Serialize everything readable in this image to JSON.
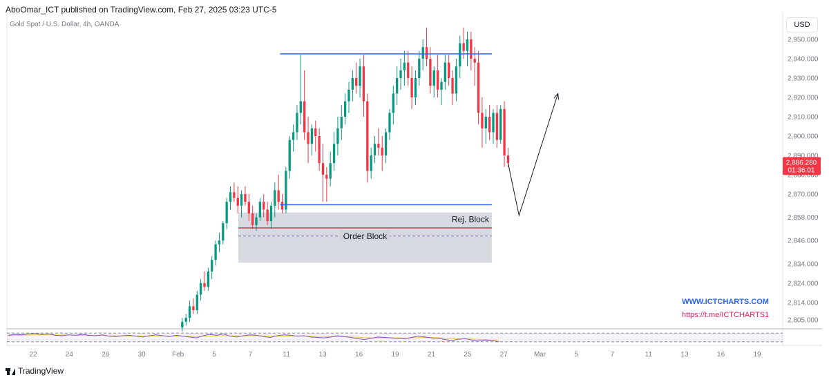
{
  "header": {
    "publisher_line": "AboOmar_ICT published on TradingView.com, Feb 27, 2025 03:23 UTC-5",
    "symbol_line": "Gold Spot / U.S. Dollar, 4h, OANDA"
  },
  "currency_button": "USD",
  "footer": {
    "brand": "TradingView"
  },
  "colors": {
    "up": "#089981",
    "down": "#f23645",
    "level_line": "#2962ff",
    "ob_line": "#b22833",
    "zone": "#d1d4dc",
    "rsi_line": "#7e57c2",
    "rsi_ma": "#f5c542",
    "promo_web": "#2962ff",
    "promo_tg": "#e91e63"
  },
  "chart_data": {
    "type": "candlestick",
    "ylim": [
      2800,
      2963
    ],
    "y_ticks": [
      2805,
      2814,
      2824,
      2834,
      2846,
      2858,
      2870,
      2880,
      2890,
      2900,
      2910,
      2920,
      2930,
      2940,
      2950
    ],
    "y_tick_labels": [
      "2,805.000",
      "2,814.000",
      "2,824.000",
      "2,834.000",
      "2,846.000",
      "2,858.000",
      "2,870.000",
      "2,880.000",
      "2,890.000",
      "2,900.000",
      "2,910.000",
      "2,920.000",
      "2,930.000",
      "2,940.000",
      "2,950.000"
    ],
    "x_labels": [
      "22",
      "24",
      "28",
      "30",
      "Feb",
      "5",
      "7",
      "11",
      "13",
      "16",
      "19",
      "21",
      "25",
      "27",
      "Mar",
      "5",
      "7",
      "11",
      "13",
      "16",
      "19"
    ],
    "x_label_pos": [
      0,
      2,
      4,
      6,
      8,
      10,
      12,
      14,
      16,
      18,
      20,
      22,
      24,
      26,
      28,
      30,
      32,
      34,
      36,
      38,
      40
    ],
    "last_price": {
      "label": "2,886.280",
      "countdown": "01:36:01",
      "value": 2886.28
    },
    "candle_slots": {
      "first_slot": 8.2,
      "last_slot": 26.2
    },
    "candles": [
      [
        2801,
        2806,
        2799,
        2804
      ],
      [
        2804,
        2808,
        2802,
        2806
      ],
      [
        2806,
        2815,
        2804,
        2812
      ],
      [
        2812,
        2816,
        2808,
        2810
      ],
      [
        2810,
        2820,
        2808,
        2818
      ],
      [
        2818,
        2826,
        2815,
        2824
      ],
      [
        2824,
        2830,
        2820,
        2822
      ],
      [
        2822,
        2832,
        2820,
        2830
      ],
      [
        2830,
        2838,
        2826,
        2836
      ],
      [
        2836,
        2846,
        2833,
        2844
      ],
      [
        2844,
        2850,
        2840,
        2846
      ],
      [
        2846,
        2856,
        2844,
        2855
      ],
      [
        2855,
        2868,
        2852,
        2866
      ],
      [
        2866,
        2874,
        2862,
        2871
      ],
      [
        2871,
        2876,
        2866,
        2868
      ],
      [
        2868,
        2874,
        2860,
        2864
      ],
      [
        2864,
        2872,
        2858,
        2870
      ],
      [
        2870,
        2874,
        2864,
        2866
      ],
      [
        2866,
        2870,
        2856,
        2860
      ],
      [
        2860,
        2864,
        2852,
        2854
      ],
      [
        2854,
        2860,
        2851,
        2858
      ],
      [
        2858,
        2868,
        2856,
        2866
      ],
      [
        2866,
        2870,
        2858,
        2862
      ],
      [
        2862,
        2866,
        2854,
        2856
      ],
      [
        2856,
        2866,
        2852,
        2864
      ],
      [
        2864,
        2876,
        2858,
        2872
      ],
      [
        2872,
        2880,
        2862,
        2866
      ],
      [
        2866,
        2870,
        2860,
        2862
      ],
      [
        2862,
        2884,
        2860,
        2882
      ],
      [
        2882,
        2900,
        2878,
        2898
      ],
      [
        2898,
        2906,
        2892,
        2902
      ],
      [
        2902,
        2916,
        2898,
        2912
      ],
      [
        2912,
        2942,
        2906,
        2918
      ],
      [
        2918,
        2934,
        2898,
        2902
      ],
      [
        2902,
        2910,
        2886,
        2896
      ],
      [
        2896,
        2906,
        2890,
        2904
      ],
      [
        2904,
        2908,
        2892,
        2900
      ],
      [
        2900,
        2904,
        2882,
        2886
      ],
      [
        2886,
        2896,
        2866,
        2880
      ],
      [
        2880,
        2884,
        2866,
        2878
      ],
      [
        2878,
        2892,
        2874,
        2886
      ],
      [
        2886,
        2902,
        2882,
        2896
      ],
      [
        2896,
        2910,
        2890,
        2904
      ],
      [
        2904,
        2916,
        2898,
        2910
      ],
      [
        2910,
        2922,
        2906,
        2918
      ],
      [
        2918,
        2928,
        2912,
        2924
      ],
      [
        2924,
        2934,
        2918,
        2930
      ],
      [
        2930,
        2938,
        2922,
        2926
      ],
      [
        2926,
        2940,
        2920,
        2936
      ],
      [
        2936,
        2942,
        2910,
        2918
      ],
      [
        2918,
        2922,
        2876,
        2882
      ],
      [
        2882,
        2894,
        2878,
        2890
      ],
      [
        2890,
        2900,
        2886,
        2896
      ],
      [
        2896,
        2904,
        2890,
        2894
      ],
      [
        2894,
        2900,
        2882,
        2890
      ],
      [
        2890,
        2904,
        2886,
        2902
      ],
      [
        2902,
        2914,
        2898,
        2912
      ],
      [
        2912,
        2926,
        2906,
        2922
      ],
      [
        2922,
        2936,
        2916,
        2930
      ],
      [
        2930,
        2940,
        2924,
        2934
      ],
      [
        2934,
        2944,
        2926,
        2938
      ],
      [
        2938,
        2944,
        2926,
        2930
      ],
      [
        2930,
        2936,
        2914,
        2920
      ],
      [
        2920,
        2934,
        2916,
        2930
      ],
      [
        2930,
        2944,
        2926,
        2940
      ],
      [
        2940,
        2950,
        2934,
        2946
      ],
      [
        2946,
        2956,
        2936,
        2940
      ],
      [
        2940,
        2946,
        2922,
        2926
      ],
      [
        2926,
        2936,
        2920,
        2934
      ],
      [
        2934,
        2942,
        2920,
        2924
      ],
      [
        2924,
        2930,
        2916,
        2928
      ],
      [
        2928,
        2942,
        2924,
        2938
      ],
      [
        2938,
        2942,
        2926,
        2930
      ],
      [
        2930,
        2934,
        2916,
        2922
      ],
      [
        2922,
        2940,
        2918,
        2936
      ],
      [
        2936,
        2952,
        2930,
        2948
      ],
      [
        2948,
        2956,
        2940,
        2944
      ],
      [
        2944,
        2954,
        2936,
        2950
      ],
      [
        2950,
        2954,
        2934,
        2940
      ],
      [
        2940,
        2946,
        2926,
        2938
      ],
      [
        2938,
        2944,
        2906,
        2912
      ],
      [
        2912,
        2920,
        2894,
        2904
      ],
      [
        2904,
        2914,
        2896,
        2910
      ],
      [
        2910,
        2916,
        2898,
        2902
      ],
      [
        2902,
        2914,
        2896,
        2912
      ],
      [
        2912,
        2916,
        2894,
        2898
      ],
      [
        2898,
        2916,
        2896,
        2914
      ],
      [
        2914,
        2918,
        2884,
        2890
      ],
      [
        2890,
        2894,
        2884,
        2886
      ]
    ],
    "levels": [
      {
        "name": "range-high",
        "value": 2942.5,
        "from_slot": 13.6,
        "to_slot": 25.3
      },
      {
        "name": "range-low",
        "value": 2864.5,
        "from_slot": 13.6,
        "to_slot": 25.3
      }
    ],
    "zones": [
      {
        "name": "rej-block",
        "label": "Rej. Block",
        "top": 2860.5,
        "bottom": 2852.5,
        "from_slot": 11.3,
        "to_slot": 25.3
      },
      {
        "name": "order-block",
        "label": "Order Block",
        "top": 2852.5,
        "bottom": 2834.5,
        "from_slot": 11.3,
        "to_slot": 25.3
      }
    ],
    "ob_line_value": 2852.5,
    "ob_mid_value": 2848.3,
    "projection": {
      "start_value": 2886,
      "pivot_value": 2859,
      "end_value": 2922,
      "start_slot": 26.2,
      "pivot_slot": 26.5,
      "end_slot": 28.5
    },
    "rsi": {
      "upper_band": 70,
      "lower_band": 30,
      "values": [
        60,
        64,
        62,
        66,
        68,
        64,
        66,
        60,
        58,
        62,
        60,
        64,
        60,
        58,
        62,
        56,
        54,
        58,
        60,
        56,
        52,
        58,
        62,
        58,
        54,
        60,
        56,
        52,
        48,
        58,
        64,
        60,
        66,
        56,
        52,
        58,
        62,
        60,
        54,
        50,
        58,
        62,
        60,
        56,
        58,
        52,
        50,
        48,
        52,
        58,
        54,
        50,
        44,
        40,
        46,
        52,
        50,
        48,
        46,
        44,
        50,
        56,
        52,
        48,
        46,
        40,
        36,
        42,
        44,
        38,
        34,
        38,
        36,
        30
      ],
      "ma": [
        58,
        59,
        60,
        61,
        62,
        62,
        62,
        62,
        61,
        61,
        60,
        60,
        60,
        59,
        59,
        58,
        57,
        57,
        57,
        56,
        56,
        56,
        57,
        57,
        56,
        56,
        56,
        55,
        54,
        55,
        56,
        57,
        58,
        58,
        57,
        57,
        58,
        58,
        57,
        56,
        56,
        56,
        57,
        57,
        57,
        56,
        55,
        54,
        53,
        53,
        53,
        52,
        51,
        49,
        48,
        48,
        48,
        48,
        48,
        47,
        48,
        49,
        50,
        50,
        49,
        47,
        45,
        44,
        43,
        42,
        41,
        40,
        39,
        38
      ]
    }
  },
  "annotations": {
    "rej_block_label": "Rej. Block",
    "order_block_label": "Order Block",
    "promo_web": "WWW.ICTCHARTS.COM",
    "promo_telegram": "https://t.me/ICTCHARTS1"
  }
}
